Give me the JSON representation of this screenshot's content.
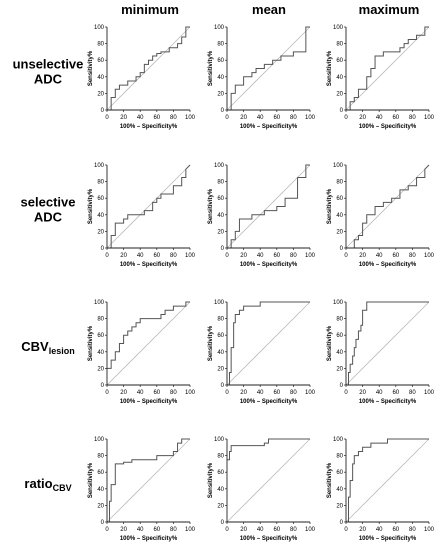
{
  "columns": [
    "minimum",
    "mean",
    "maximum"
  ],
  "rows": [
    {
      "lines": [
        {
          "text": "unselective"
        },
        {
          "text": "ADC"
        }
      ]
    },
    {
      "lines": [
        {
          "text": "selective"
        },
        {
          "text": "ADC"
        }
      ]
    },
    {
      "lines": [
        {
          "text": "CBV",
          "sub": "lesion"
        }
      ]
    },
    {
      "lines": [
        {
          "text": "ratio",
          "sub": "CBV"
        }
      ]
    }
  ],
  "axes": {
    "xlabel": "100% – Specificity%",
    "ylabel": "Sensitivity%",
    "ticks": [
      0,
      20,
      40,
      60,
      80,
      100
    ],
    "xlim": [
      0,
      100
    ],
    "ylim": [
      0,
      100
    ]
  },
  "colors": {
    "curve": "#555555",
    "reference": "#bbbbbb",
    "axis": "#222222"
  },
  "chart_data": [
    {
      "type": "line",
      "row": "unselective ADC",
      "column": "minimum",
      "x": [
        0,
        5,
        5,
        10,
        10,
        15,
        15,
        25,
        25,
        35,
        35,
        40,
        40,
        45,
        45,
        50,
        50,
        55,
        55,
        60,
        60,
        65,
        65,
        75,
        75,
        85,
        85,
        90,
        90,
        95,
        95,
        100
      ],
      "y": [
        0,
        0,
        15,
        15,
        25,
        25,
        30,
        30,
        35,
        35,
        40,
        40,
        45,
        45,
        55,
        55,
        60,
        60,
        65,
        65,
        68,
        68,
        70,
        70,
        75,
        75,
        80,
        80,
        88,
        88,
        100,
        100
      ],
      "reference_line": {
        "x": [
          0,
          100
        ],
        "y": [
          0,
          100
        ]
      },
      "xlim": [
        0,
        100
      ],
      "ylim": [
        0,
        100
      ]
    },
    {
      "type": "line",
      "row": "unselective ADC",
      "column": "mean",
      "x": [
        0,
        5,
        5,
        10,
        10,
        20,
        20,
        30,
        30,
        35,
        35,
        45,
        45,
        55,
        55,
        65,
        65,
        80,
        80,
        95,
        95,
        100
      ],
      "y": [
        0,
        0,
        20,
        20,
        30,
        30,
        40,
        40,
        45,
        45,
        50,
        50,
        55,
        55,
        60,
        60,
        65,
        65,
        70,
        70,
        100,
        100
      ],
      "reference_line": {
        "x": [
          0,
          100
        ],
        "y": [
          0,
          100
        ]
      },
      "xlim": [
        0,
        100
      ],
      "ylim": [
        0,
        100
      ]
    },
    {
      "type": "line",
      "row": "unselective ADC",
      "column": "maximum",
      "x": [
        0,
        5,
        5,
        10,
        10,
        15,
        15,
        25,
        25,
        30,
        30,
        35,
        35,
        45,
        45,
        65,
        65,
        70,
        70,
        75,
        75,
        85,
        85,
        95,
        95,
        100
      ],
      "y": [
        0,
        0,
        10,
        10,
        15,
        15,
        25,
        25,
        40,
        40,
        50,
        50,
        65,
        65,
        70,
        70,
        75,
        75,
        80,
        80,
        85,
        85,
        90,
        90,
        100,
        100
      ],
      "reference_line": {
        "x": [
          0,
          100
        ],
        "y": [
          0,
          100
        ]
      },
      "xlim": [
        0,
        100
      ],
      "ylim": [
        0,
        100
      ]
    },
    {
      "type": "line",
      "row": "selective ADC",
      "column": "minimum",
      "x": [
        0,
        5,
        5,
        10,
        10,
        20,
        20,
        25,
        25,
        45,
        45,
        55,
        55,
        60,
        60,
        65,
        65,
        80,
        80,
        90,
        90,
        95,
        95,
        100
      ],
      "y": [
        0,
        0,
        15,
        15,
        30,
        30,
        35,
        35,
        40,
        40,
        45,
        45,
        55,
        55,
        60,
        60,
        65,
        65,
        75,
        75,
        85,
        85,
        95,
        100
      ],
      "reference_line": {
        "x": [
          0,
          100
        ],
        "y": [
          0,
          100
        ]
      },
      "xlim": [
        0,
        100
      ],
      "ylim": [
        0,
        100
      ]
    },
    {
      "type": "line",
      "row": "selective ADC",
      "column": "mean",
      "x": [
        0,
        5,
        5,
        10,
        10,
        15,
        15,
        30,
        30,
        45,
        45,
        60,
        60,
        70,
        70,
        85,
        85,
        95,
        95,
        100
      ],
      "y": [
        0,
        0,
        10,
        10,
        20,
        20,
        35,
        35,
        40,
        40,
        45,
        45,
        50,
        50,
        60,
        60,
        85,
        85,
        100,
        100
      ],
      "reference_line": {
        "x": [
          0,
          100
        ],
        "y": [
          0,
          100
        ]
      },
      "xlim": [
        0,
        100
      ],
      "ylim": [
        0,
        100
      ]
    },
    {
      "type": "line",
      "row": "selective ADC",
      "column": "maximum",
      "x": [
        0,
        10,
        10,
        15,
        15,
        20,
        20,
        25,
        25,
        35,
        35,
        45,
        45,
        55,
        55,
        65,
        65,
        75,
        75,
        85,
        85,
        95,
        95,
        100
      ],
      "y": [
        0,
        0,
        10,
        10,
        15,
        15,
        30,
        30,
        40,
        40,
        50,
        50,
        55,
        55,
        60,
        60,
        70,
        70,
        75,
        75,
        85,
        85,
        95,
        100
      ],
      "reference_line": {
        "x": [
          0,
          100
        ],
        "y": [
          0,
          100
        ]
      },
      "xlim": [
        0,
        100
      ],
      "ylim": [
        0,
        100
      ]
    },
    {
      "type": "line",
      "row": "CBV lesion",
      "column": "minimum",
      "x": [
        0,
        5,
        5,
        10,
        10,
        15,
        15,
        20,
        20,
        25,
        25,
        30,
        30,
        35,
        35,
        40,
        40,
        65,
        65,
        70,
        70,
        80,
        80,
        95,
        95,
        100
      ],
      "y": [
        20,
        20,
        30,
        30,
        40,
        40,
        50,
        50,
        60,
        60,
        65,
        65,
        70,
        70,
        75,
        75,
        80,
        80,
        85,
        85,
        90,
        90,
        95,
        95,
        100,
        100
      ],
      "reference_line": {
        "x": [
          0,
          100
        ],
        "y": [
          0,
          100
        ]
      },
      "xlim": [
        0,
        100
      ],
      "ylim": [
        0,
        100
      ]
    },
    {
      "type": "line",
      "row": "CBV lesion",
      "column": "mean",
      "x": [
        0,
        3,
        3,
        5,
        5,
        8,
        8,
        10,
        10,
        15,
        15,
        20,
        20,
        40,
        40,
        60,
        60,
        100
      ],
      "y": [
        0,
        0,
        15,
        15,
        45,
        45,
        75,
        75,
        85,
        85,
        90,
        90,
        95,
        95,
        100,
        100,
        100,
        100
      ],
      "reference_line": {
        "x": [
          0,
          100
        ],
        "y": [
          0,
          100
        ]
      },
      "xlim": [
        0,
        100
      ],
      "ylim": [
        0,
        100
      ]
    },
    {
      "type": "line",
      "row": "CBV lesion",
      "column": "maximum",
      "x": [
        0,
        3,
        3,
        5,
        5,
        8,
        8,
        10,
        10,
        12,
        12,
        15,
        15,
        18,
        18,
        20,
        20,
        25,
        25,
        30,
        30,
        100
      ],
      "y": [
        0,
        0,
        15,
        15,
        25,
        25,
        35,
        35,
        45,
        45,
        55,
        55,
        65,
        65,
        72,
        72,
        90,
        90,
        100,
        100,
        100,
        100
      ],
      "reference_line": {
        "x": [
          0,
          100
        ],
        "y": [
          0,
          100
        ]
      },
      "xlim": [
        0,
        100
      ],
      "ylim": [
        0,
        100
      ]
    },
    {
      "type": "line",
      "row": "ratio CBV",
      "column": "minimum",
      "x": [
        0,
        3,
        3,
        5,
        5,
        10,
        10,
        20,
        20,
        30,
        30,
        60,
        60,
        80,
        80,
        85,
        85,
        90,
        90,
        100
      ],
      "y": [
        0,
        0,
        25,
        25,
        45,
        45,
        70,
        70,
        72,
        72,
        75,
        75,
        80,
        80,
        85,
        85,
        95,
        95,
        100,
        100
      ],
      "reference_line": {
        "x": [
          0,
          100
        ],
        "y": [
          0,
          100
        ]
      },
      "xlim": [
        0,
        100
      ],
      "ylim": [
        0,
        100
      ]
    },
    {
      "type": "line",
      "row": "ratio CBV",
      "column": "mean",
      "x": [
        0,
        3,
        3,
        5,
        5,
        45,
        45,
        50,
        50,
        100
      ],
      "y": [
        75,
        75,
        85,
        85,
        92,
        92,
        95,
        95,
        100,
        100
      ],
      "reference_line": {
        "x": [
          0,
          100
        ],
        "y": [
          0,
          100
        ]
      },
      "xlim": [
        0,
        100
      ],
      "ylim": [
        0,
        100
      ]
    },
    {
      "type": "line",
      "row": "ratio CBV",
      "column": "maximum",
      "x": [
        0,
        3,
        3,
        5,
        5,
        8,
        8,
        10,
        10,
        15,
        15,
        20,
        20,
        30,
        30,
        50,
        50,
        100
      ],
      "y": [
        0,
        0,
        30,
        30,
        50,
        50,
        70,
        70,
        80,
        80,
        85,
        85,
        90,
        90,
        95,
        95,
        100,
        100
      ],
      "reference_line": {
        "x": [
          0,
          100
        ],
        "y": [
          0,
          100
        ]
      },
      "xlim": [
        0,
        100
      ],
      "ylim": [
        0,
        100
      ]
    }
  ]
}
